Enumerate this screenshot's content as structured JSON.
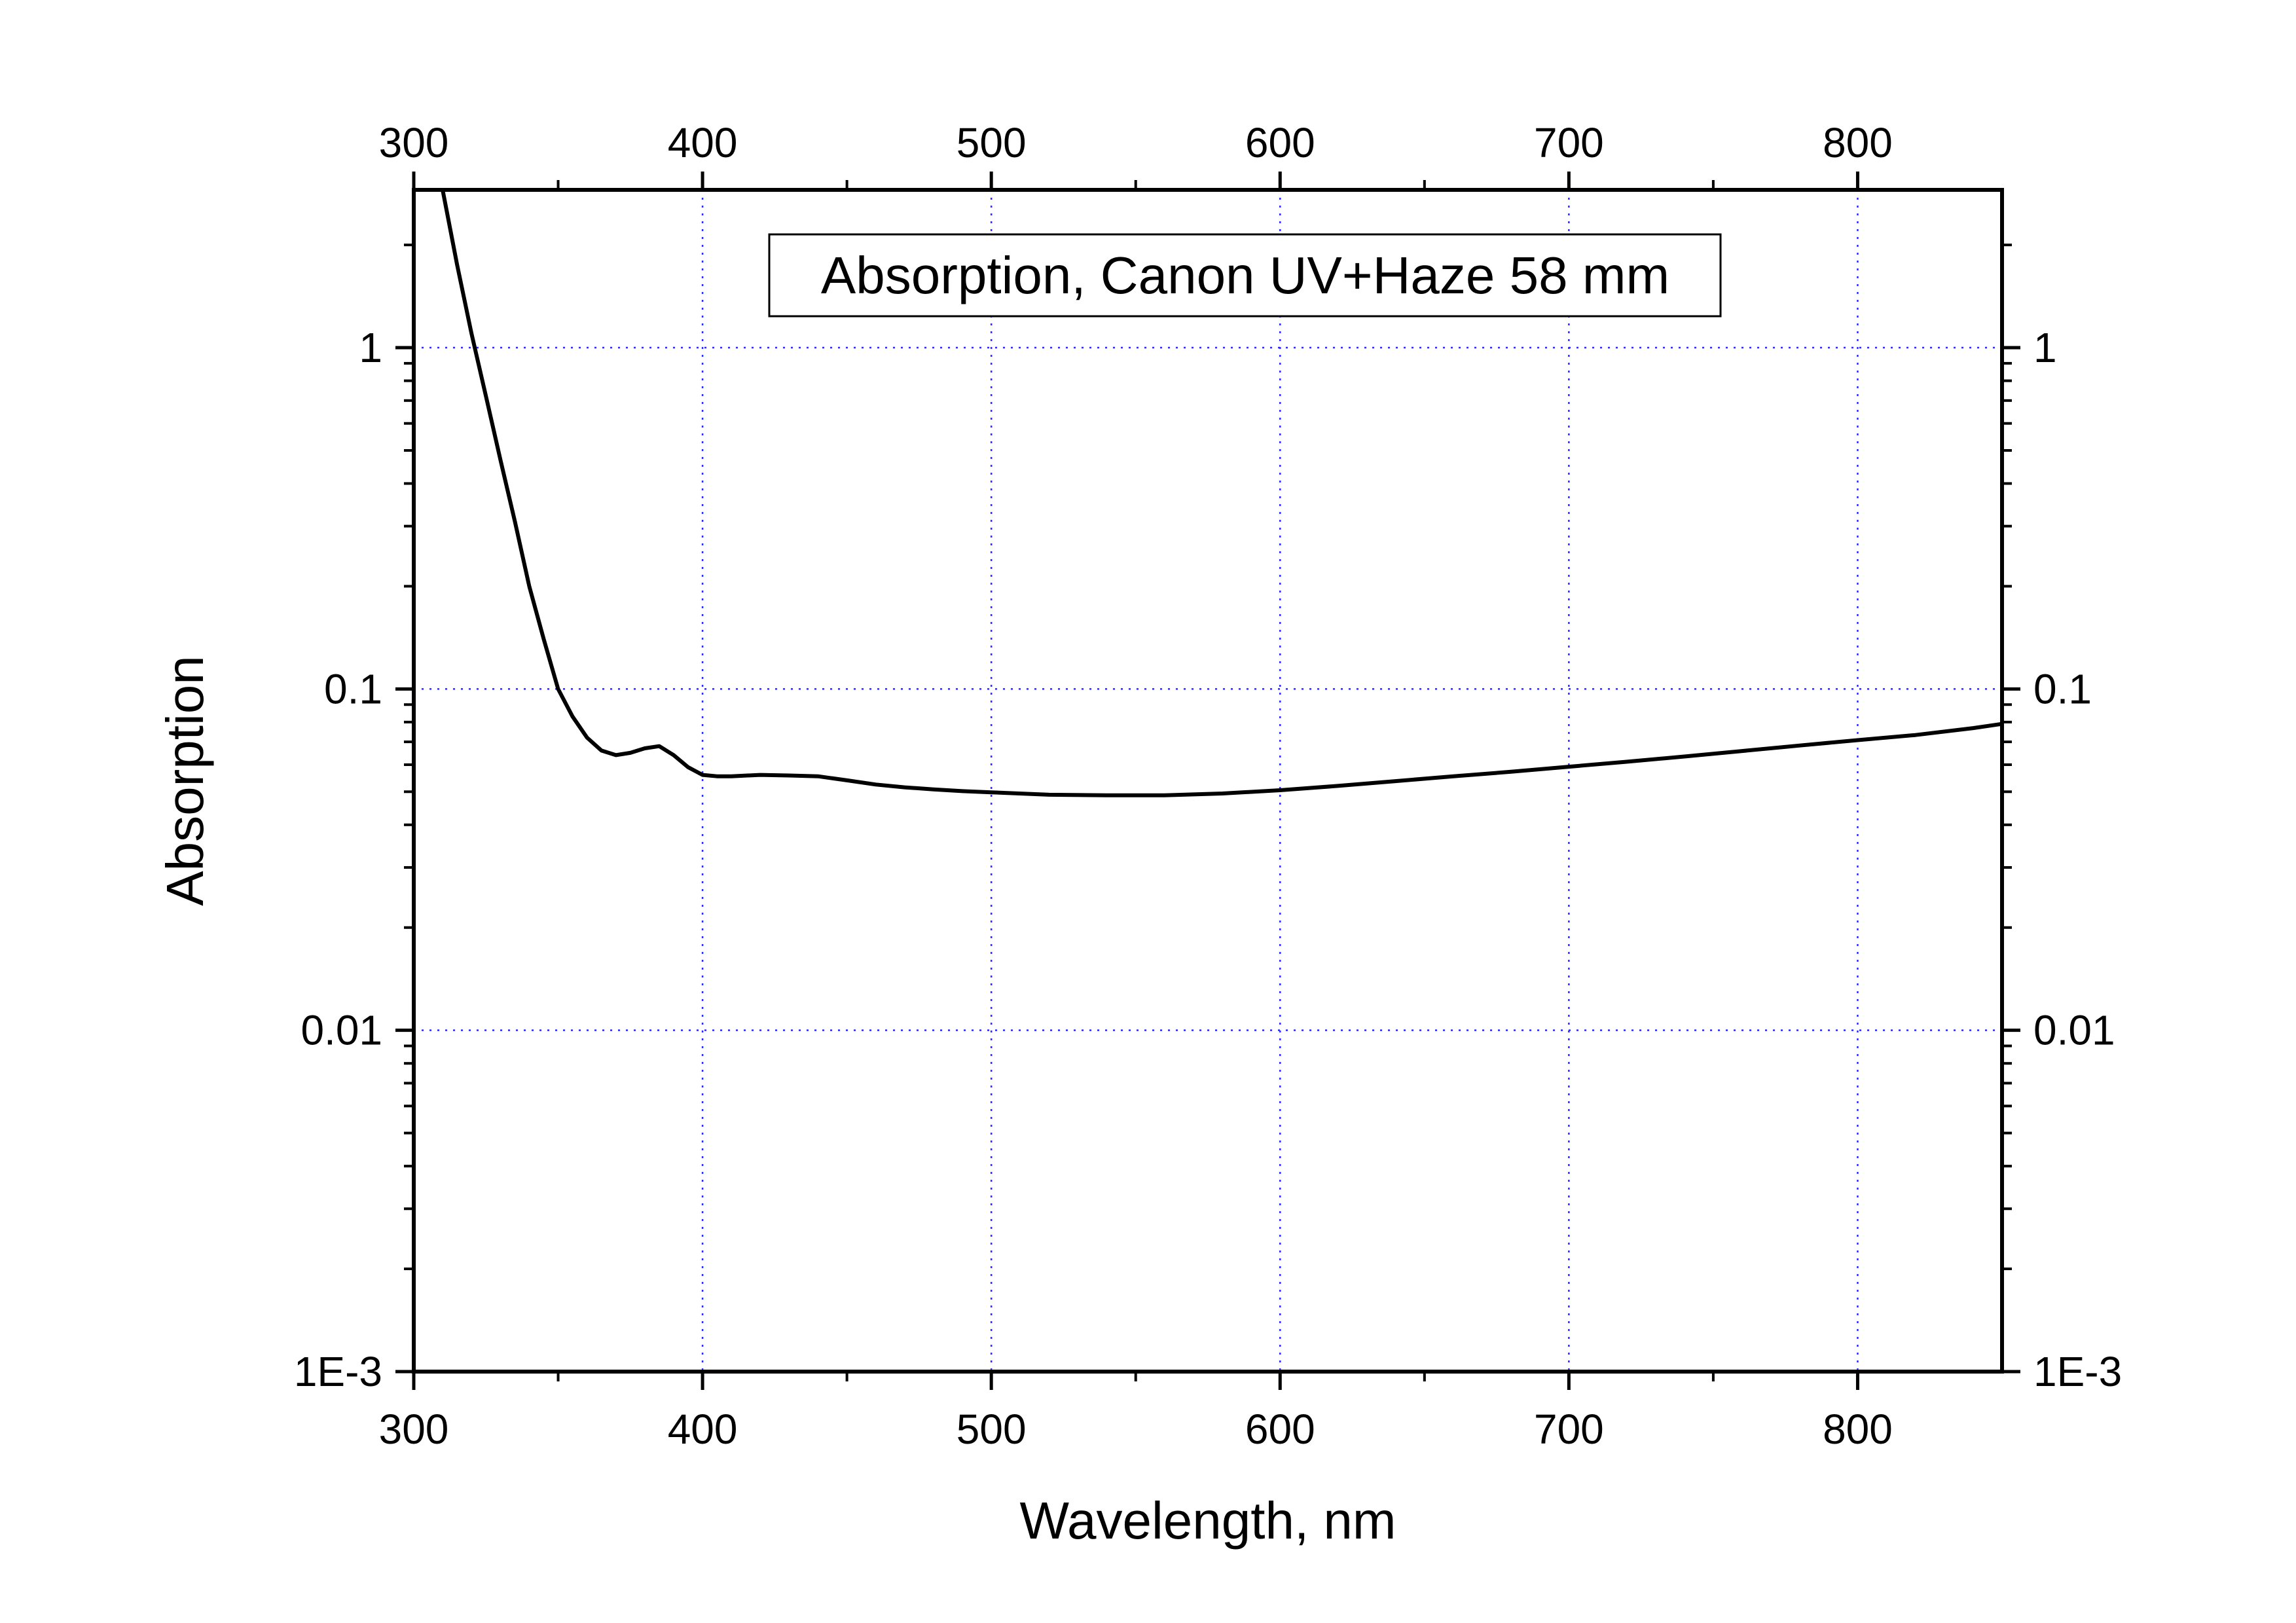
{
  "chart_data": {
    "type": "line",
    "xlabel": "Wavelength, nm",
    "ylabel": "Absorption",
    "xlim": [
      300,
      850
    ],
    "ylim": [
      0.001,
      2.9
    ],
    "y_scale": "log",
    "x_ticks": [
      300,
      400,
      500,
      600,
      700,
      800
    ],
    "x_tick_labels": [
      "300",
      "400",
      "500",
      "600",
      "700",
      "800"
    ],
    "y_ticks": [
      0.001,
      0.01,
      0.1,
      1
    ],
    "y_tick_labels": [
      "1E-3",
      "0.01",
      "0.1",
      "1"
    ],
    "grid": "dotted",
    "grid_color": "#2b2bff",
    "line_color": "#000000",
    "legend_position": "top-center",
    "series": [
      {
        "name": "Absorption, Canon UV+Haze 58 mm",
        "x": [
          310,
          315,
          320,
          325,
          330,
          335,
          340,
          345,
          350,
          355,
          360,
          365,
          370,
          375,
          380,
          385,
          390,
          395,
          400,
          405,
          410,
          420,
          430,
          440,
          450,
          460,
          470,
          480,
          490,
          500,
          520,
          540,
          560,
          580,
          600,
          620,
          640,
          660,
          680,
          700,
          720,
          740,
          760,
          780,
          800,
          820,
          840,
          850
        ],
        "y": [
          2.9,
          1.75,
          1.1,
          0.72,
          0.47,
          0.31,
          0.2,
          0.14,
          0.1,
          0.083,
          0.072,
          0.066,
          0.064,
          0.065,
          0.067,
          0.068,
          0.064,
          0.059,
          0.056,
          0.0555,
          0.0555,
          0.056,
          0.0558,
          0.0555,
          0.054,
          0.0525,
          0.0515,
          0.0508,
          0.0502,
          0.0498,
          0.049,
          0.0488,
          0.0488,
          0.0494,
          0.0505,
          0.052,
          0.0537,
          0.0555,
          0.0572,
          0.0592,
          0.0612,
          0.0634,
          0.0658,
          0.0683,
          0.0708,
          0.0733,
          0.0768,
          0.079
        ]
      }
    ]
  }
}
